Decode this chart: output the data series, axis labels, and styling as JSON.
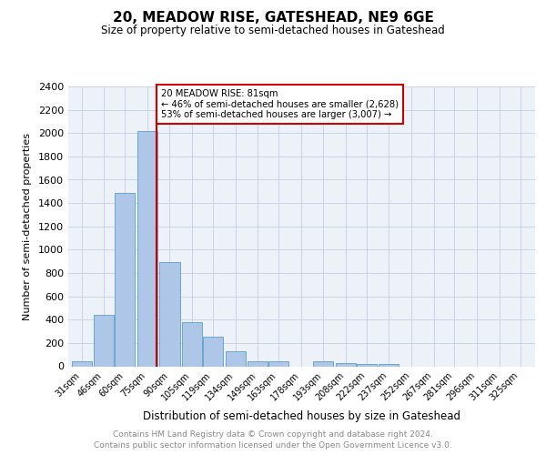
{
  "title": "20, MEADOW RISE, GATESHEAD, NE9 6GE",
  "subtitle": "Size of property relative to semi-detached houses in Gateshead",
  "xlabel": "Distribution of semi-detached houses by size in Gateshead",
  "ylabel": "Number of semi-detached properties",
  "property_label": "20 MEADOW RISE: 81sqm",
  "annotation_line1": "← 46% of semi-detached houses are smaller (2,628)",
  "annotation_line2": "53% of semi-detached houses are larger (3,007) →",
  "bar_centers": [
    31,
    46,
    60,
    75,
    90,
    105,
    119,
    134,
    149,
    163,
    178,
    193,
    208,
    222,
    237,
    252,
    267,
    281,
    296,
    311,
    325
  ],
  "bar_heights": [
    40,
    440,
    1490,
    2020,
    890,
    375,
    255,
    130,
    40,
    45,
    0,
    40,
    25,
    20,
    20,
    0,
    0,
    0,
    0,
    0,
    0
  ],
  "bar_width": 13.5,
  "tick_labels": [
    "31sqm",
    "46sqm",
    "60sqm",
    "75sqm",
    "90sqm",
    "105sqm",
    "119sqm",
    "134sqm",
    "149sqm",
    "163sqm",
    "178sqm",
    "193sqm",
    "208sqm",
    "222sqm",
    "237sqm",
    "252sqm",
    "267sqm",
    "281sqm",
    "296sqm",
    "311sqm",
    "325sqm"
  ],
  "tick_positions": [
    31,
    46,
    60,
    75,
    90,
    105,
    119,
    134,
    149,
    163,
    178,
    193,
    208,
    222,
    237,
    252,
    267,
    281,
    296,
    311,
    325
  ],
  "ylim": [
    0,
    2400
  ],
  "yticks": [
    0,
    200,
    400,
    600,
    800,
    1000,
    1200,
    1400,
    1600,
    1800,
    2000,
    2200,
    2400
  ],
  "xlim_left": 22,
  "xlim_right": 335,
  "bar_color": "#aec6e8",
  "bar_edge_color": "#5a9dc8",
  "red_line_x": 81,
  "red_line_color": "#cc0000",
  "annotation_box_color": "#cc0000",
  "grid_color": "#c8d4e8",
  "background_color": "#edf2f9",
  "footer_line1": "Contains HM Land Registry data © Crown copyright and database right 2024.",
  "footer_line2": "Contains public sector information licensed under the Open Government Licence v3.0.",
  "footer_color": "#888888"
}
